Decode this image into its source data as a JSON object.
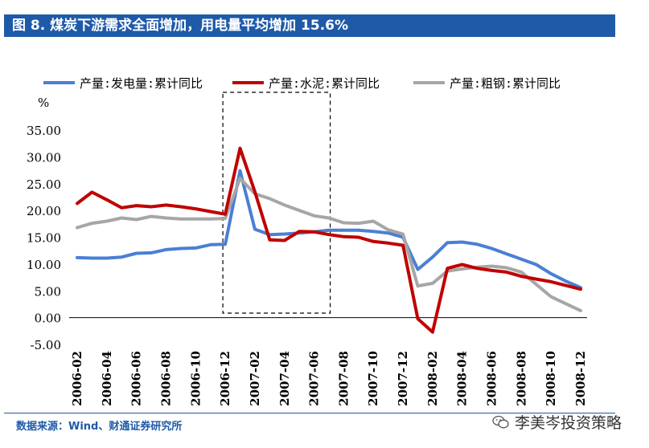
{
  "title": "图 8. 煤炭下游需求全面增加，用电量平均增加 15.6%",
  "source": "数据来源：Wind、财通证券研究所",
  "watermark": "李美岑投资策略",
  "colors": {
    "header_bg": "#1f5aa8",
    "series_electricity": "#4a7fd4",
    "series_cement": "#c00000",
    "series_steel": "#a6a6a6"
  },
  "chart_data": {
    "type": "line",
    "title": "",
    "ylabel": "%",
    "xlabel": "",
    "ylim": [
      -5,
      35
    ],
    "yticks": [
      "35.00",
      "30.00",
      "25.00",
      "20.00",
      "15.00",
      "10.00",
      "5.00",
      "0.00",
      "-5.00"
    ],
    "ytick_values": [
      35,
      30,
      25,
      20,
      15,
      10,
      5,
      0,
      -5
    ],
    "xtick_labels": [
      "2006-02",
      "2006-04",
      "2006-06",
      "2006-08",
      "2006-10",
      "2006-12",
      "2007-02",
      "2007-04",
      "2007-06",
      "2007-08",
      "2007-10",
      "2007-12",
      "2008-02",
      "2008-04",
      "2008-06",
      "2008-08",
      "2008-10",
      "2008-12"
    ],
    "x": [
      "2006-02",
      "2006-03",
      "2006-04",
      "2006-05",
      "2006-06",
      "2006-07",
      "2006-08",
      "2006-09",
      "2006-10",
      "2006-11",
      "2006-12",
      "2007-01",
      "2007-02",
      "2007-03",
      "2007-04",
      "2007-05",
      "2007-06",
      "2007-07",
      "2007-08",
      "2007-09",
      "2007-10",
      "2007-11",
      "2007-12",
      "2008-01",
      "2008-02",
      "2008-03",
      "2008-04",
      "2008-05",
      "2008-06",
      "2008-07",
      "2008-08",
      "2008-09",
      "2008-10",
      "2008-11",
      "2008-12"
    ],
    "grid": false,
    "legend_position": "top",
    "highlight_range": [
      "2006-12",
      "2007-06"
    ],
    "series": [
      {
        "name": "产量:发电量:累计同比",
        "values": [
          11.2,
          11.1,
          11.1,
          11.3,
          12.0,
          12.1,
          12.7,
          12.9,
          13.0,
          13.6,
          13.7,
          27.4,
          16.5,
          15.5,
          15.6,
          15.8,
          16.0,
          16.3,
          16.3,
          16.3,
          16.1,
          15.8,
          15.0,
          9.0,
          11.3,
          14.0,
          14.1,
          13.7,
          12.9,
          11.9,
          10.9,
          9.9,
          8.2,
          6.8,
          5.6
        ]
      },
      {
        "name": "产量:水泥:累计同比",
        "values": [
          21.3,
          23.4,
          22.0,
          20.5,
          20.9,
          20.7,
          21.0,
          20.7,
          20.3,
          19.8,
          19.3,
          31.6,
          23.5,
          14.5,
          14.4,
          16.1,
          16.0,
          15.5,
          15.1,
          15.0,
          14.2,
          13.9,
          13.5,
          -0.2,
          -2.7,
          9.2,
          9.9,
          9.2,
          8.8,
          8.5,
          7.7,
          7.2,
          6.7,
          6.0,
          5.3
        ]
      },
      {
        "name": "产量:粗钢:累计同比",
        "values": [
          16.8,
          17.6,
          18.0,
          18.6,
          18.3,
          18.9,
          18.6,
          18.4,
          18.4,
          18.4,
          18.5,
          26.0,
          23.1,
          22.2,
          21.0,
          20.0,
          19.0,
          18.6,
          17.7,
          17.6,
          18.0,
          16.4,
          15.6,
          5.9,
          6.4,
          8.7,
          9.1,
          9.4,
          9.6,
          9.3,
          8.5,
          6.2,
          3.9,
          2.6,
          1.3
        ]
      }
    ]
  }
}
